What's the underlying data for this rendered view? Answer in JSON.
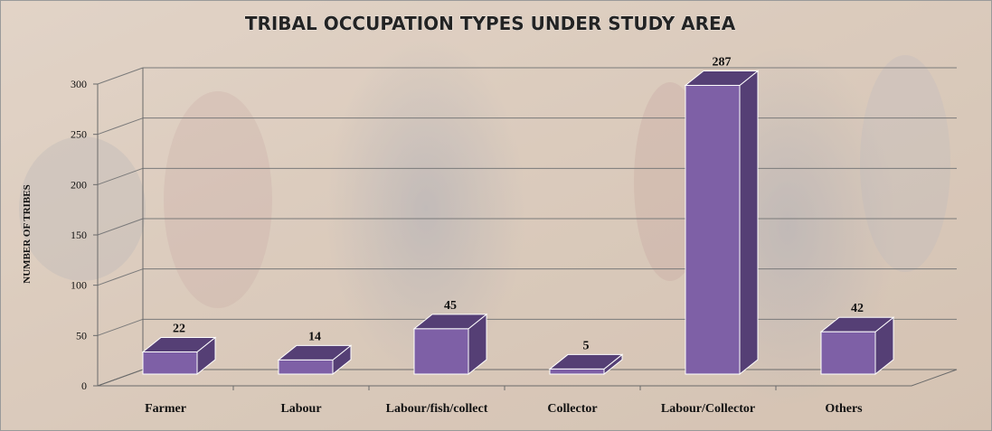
{
  "chart_data": {
    "type": "bar",
    "title": "TRIBAL OCCUPATION TYPES UNDER STUDY AREA",
    "xlabel": "",
    "ylabel": "NUMBER OF TRIBES",
    "categories": [
      "Farmer",
      "Labour",
      "Labour/fish/collect",
      "Collector",
      "Labour/Collector",
      "Others"
    ],
    "series": [
      {
        "values": [
          22,
          14,
          45,
          5,
          287,
          42
        ]
      }
    ],
    "ylim": [
      0,
      300
    ],
    "yticks": [
      0,
      50,
      100,
      150,
      200,
      250,
      300
    ],
    "data_labels": [
      "22",
      "14",
      "45",
      "5",
      "287",
      "42"
    ],
    "grid": true,
    "legend": "none",
    "style": "3d-column",
    "colors": {
      "bar_front": "#7e60a6",
      "bar_top": "#9b7fc2",
      "bar_side": "#553f75",
      "bar_edge": "#ffffff",
      "gridline": "#7a7a7a",
      "background_photo": "#c9b29e"
    }
  }
}
